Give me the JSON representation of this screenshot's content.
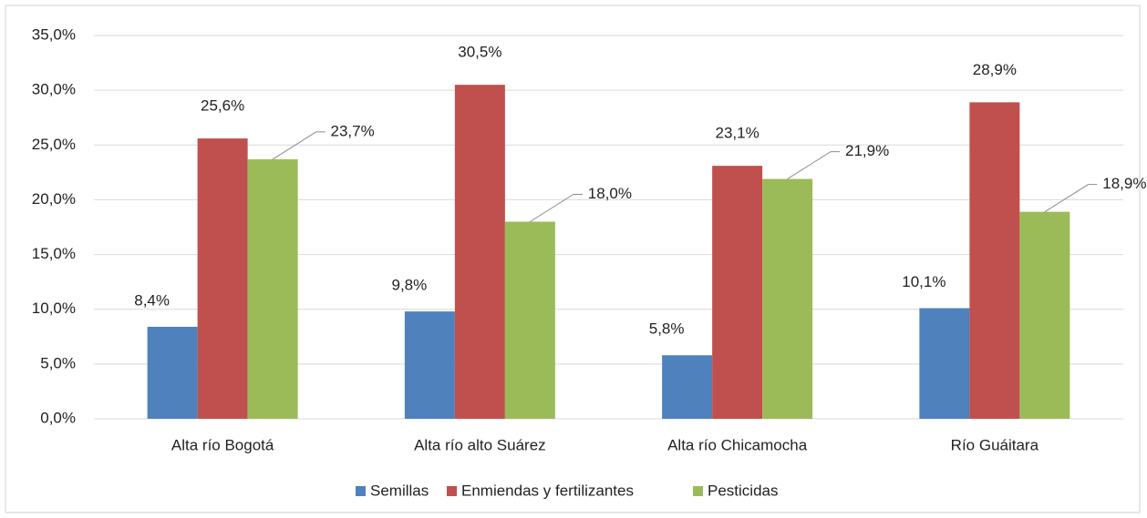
{
  "chart_data": {
    "type": "bar",
    "categories": [
      "Alta río Bogotá",
      "Alta río alto Suárez",
      "Alta río Chicamocha",
      "Río Guáitara"
    ],
    "series": [
      {
        "name": "Semillas",
        "color": "#4f81bd",
        "values": [
          8.4,
          9.8,
          5.8,
          10.1
        ],
        "value_labels": [
          "8,4%",
          "9,8%",
          "5,8%",
          "10,1%"
        ]
      },
      {
        "name": "Enmiendas y fertilizantes",
        "color": "#c0504d",
        "values": [
          25.6,
          30.5,
          23.1,
          28.9
        ],
        "value_labels": [
          "25,6%",
          "30,5%",
          "23,1%",
          "28,9%"
        ]
      },
      {
        "name": "Pesticidas",
        "color": "#9bbb59",
        "values": [
          23.7,
          18.0,
          21.9,
          18.9
        ],
        "value_labels": [
          "23,7%",
          "18,0%",
          "21,9%",
          "18,9%"
        ]
      }
    ],
    "ylim": [
      0,
      35
    ],
    "yticks": [
      {
        "value": 0,
        "label": "0,0%"
      },
      {
        "value": 5,
        "label": "5,0%"
      },
      {
        "value": 10,
        "label": "10,0%"
      },
      {
        "value": 15,
        "label": "15,0%"
      },
      {
        "value": 20,
        "label": "20,0%"
      },
      {
        "value": 25,
        "label": "25,0%"
      },
      {
        "value": 30,
        "label": "30,0%"
      },
      {
        "value": 35,
        "label": "35,0%"
      }
    ],
    "grid": true,
    "legend": "bottom"
  }
}
